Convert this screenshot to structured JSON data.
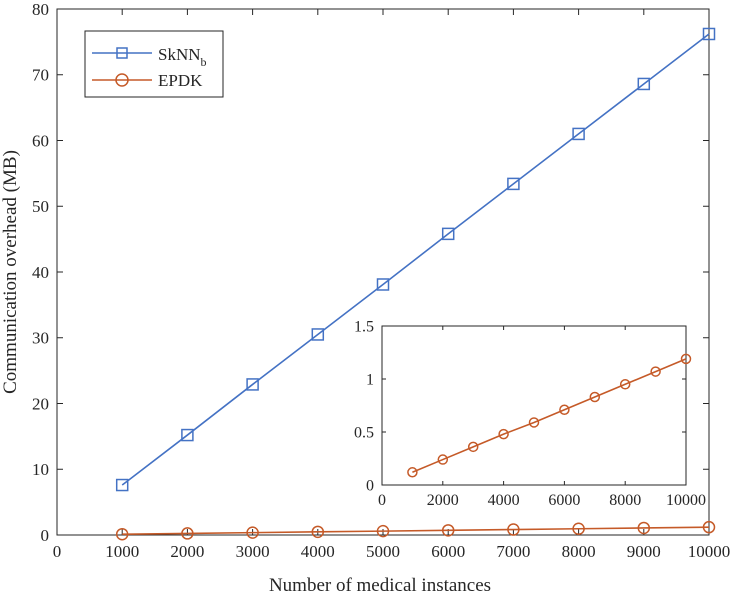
{
  "chart_data": [
    {
      "type": "line",
      "title": "",
      "xlabel": "Number of medical instances",
      "ylabel": "Communication overhead (MB)",
      "xlim": [
        0,
        10000
      ],
      "ylim": [
        0,
        80
      ],
      "xticks": [
        0,
        1000,
        2000,
        3000,
        4000,
        5000,
        6000,
        7000,
        8000,
        9000,
        10000
      ],
      "yticks": [
        0,
        10,
        20,
        30,
        40,
        50,
        60,
        70,
        80
      ],
      "grid": false,
      "legend_position": "top-left",
      "x": [
        1000,
        2000,
        3000,
        4000,
        5000,
        6000,
        7000,
        8000,
        9000,
        10000
      ],
      "series": [
        {
          "name": "SkNN",
          "name_subscript": "b",
          "marker": "square",
          "color": "#4472c4",
          "values": [
            7.6,
            15.2,
            22.9,
            30.5,
            38.1,
            45.8,
            53.4,
            61.0,
            68.6,
            76.2
          ]
        },
        {
          "name": "EPDK",
          "marker": "circle",
          "color": "#c55a28",
          "values": [
            0.12,
            0.24,
            0.36,
            0.48,
            0.59,
            0.71,
            0.83,
            0.95,
            1.07,
            1.19
          ]
        }
      ]
    },
    {
      "type": "line",
      "title": "",
      "xlabel": "",
      "ylabel": "",
      "inset": true,
      "xlim": [
        0,
        10000
      ],
      "ylim": [
        0,
        1.5
      ],
      "xticks": [
        0,
        2000,
        4000,
        6000,
        8000,
        10000
      ],
      "yticks": [
        0,
        0.5,
        1,
        1.5
      ],
      "grid": false,
      "x": [
        1000,
        2000,
        3000,
        4000,
        5000,
        6000,
        7000,
        8000,
        9000,
        10000
      ],
      "series": [
        {
          "name": "EPDK",
          "marker": "circle",
          "color": "#c55a28",
          "values": [
            0.12,
            0.24,
            0.36,
            0.48,
            0.59,
            0.71,
            0.83,
            0.95,
            1.07,
            1.19
          ]
        }
      ]
    }
  ]
}
